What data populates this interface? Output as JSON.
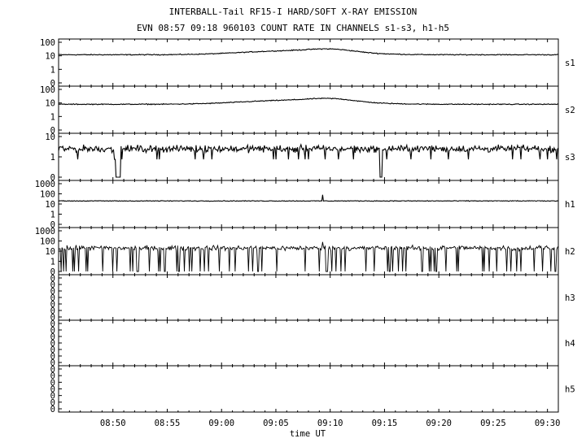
{
  "title_line1": "INTERBALL-Tail RF15-I HARD/SOFT X-RAY EMISSION",
  "title_line2": "EVN 08:57 09:18 960103  COUNT RATE IN CHANNELS s1-s3, h1-h5",
  "chart_data": {
    "type": "line",
    "scale": "log",
    "xlabel": "time UT",
    "x_range": [
      "08:45",
      "09:31"
    ],
    "x_ticks": [
      "08:50",
      "08:55",
      "09:00",
      "09:05",
      "09:10",
      "09:15",
      "09:20",
      "09:25",
      "09:30"
    ],
    "panels": [
      {
        "name": "s1",
        "yticks": [
          "100",
          "10",
          "1",
          "0"
        ],
        "typical_level": 12,
        "notes": "slow rise around 09:05-09:10 up to ~25"
      },
      {
        "name": "s2",
        "yticks": [
          "100",
          "10",
          "1",
          "0"
        ],
        "typical_level": 8,
        "notes": "slow rise around 09:05-09:10 up to ~18"
      },
      {
        "name": "s3",
        "yticks": [
          "10",
          "1",
          "0"
        ],
        "typical_level": 2.5,
        "notes": "noisy, dropouts to 0 near 08:50 and 09:14"
      },
      {
        "name": "h1",
        "yticks": [
          "1000",
          "100",
          "10",
          "1",
          "0"
        ],
        "typical_level": 20,
        "notes": "spike near 09:09"
      },
      {
        "name": "h2",
        "yticks": [
          "1000",
          "100",
          "10",
          "1",
          "0"
        ],
        "typical_level": 20,
        "notes": "dense noise with frequent drops to 0"
      },
      {
        "name": "h3",
        "yticks": [
          "0",
          "0",
          "0",
          "0",
          "0",
          "0",
          "0"
        ],
        "typical_level": 0,
        "notes": "no counts"
      },
      {
        "name": "h4",
        "yticks": [
          "0",
          "0",
          "0",
          "0",
          "0",
          "0",
          "0"
        ],
        "typical_level": 0,
        "notes": "no counts"
      },
      {
        "name": "h5",
        "yticks": [
          "0",
          "0",
          "0",
          "0",
          "0",
          "0",
          "0"
        ],
        "typical_level": 0,
        "notes": "no counts"
      }
    ]
  }
}
